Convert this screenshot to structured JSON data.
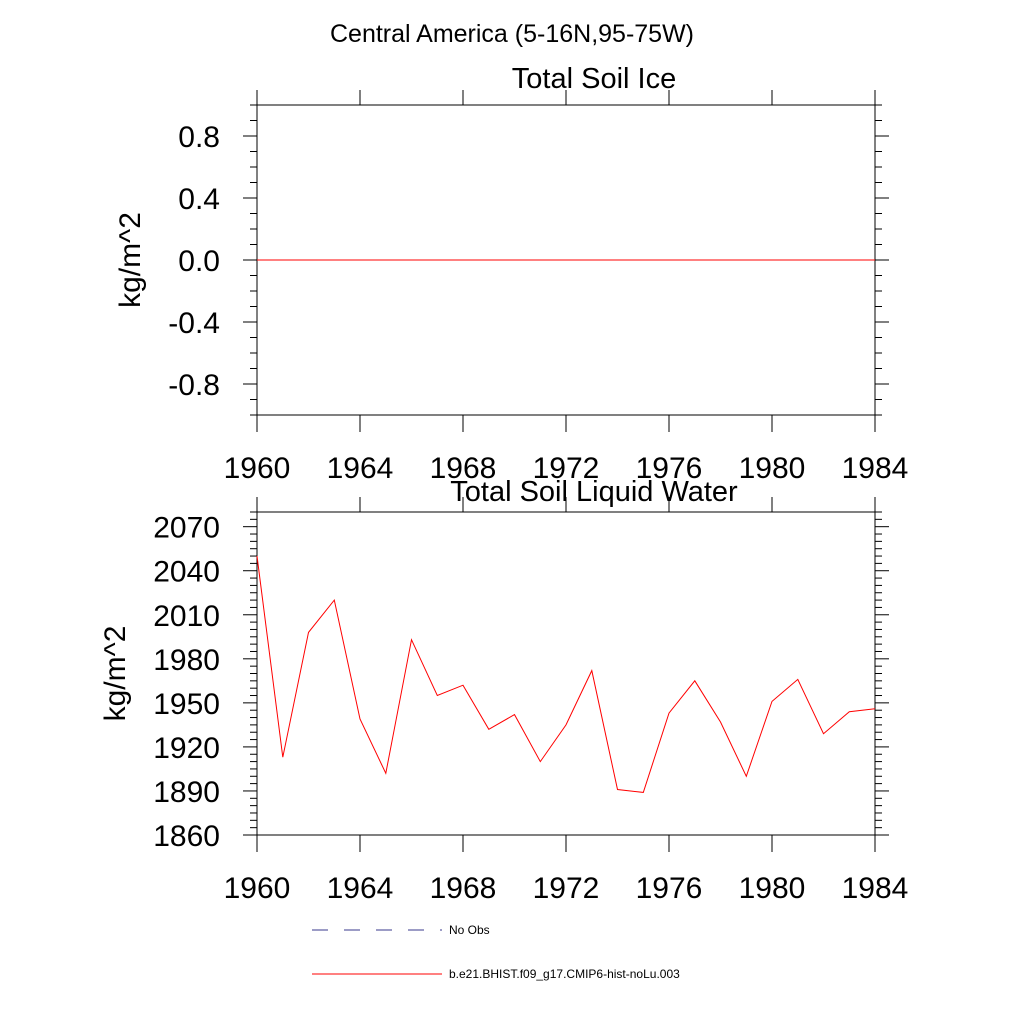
{
  "figure": {
    "title": "Central America (5-16N,95-75W)"
  },
  "chart_data": [
    {
      "type": "line",
      "title": "Total Soil Ice",
      "ylabel": "kg/m^2",
      "xlabel": "",
      "xlim": [
        1960,
        1984
      ],
      "ylim": [
        -1.0,
        1.0
      ],
      "x_ticks": [
        1960,
        1964,
        1968,
        1972,
        1976,
        1980,
        1984
      ],
      "x_tick_labels": [
        "1960",
        "1964",
        "1968",
        "1972",
        "1976",
        "1980",
        "1984"
      ],
      "y_ticks": [
        0.8,
        0.4,
        0.0,
        -0.4,
        -0.8
      ],
      "y_tick_labels": [
        "0.8",
        "0.4",
        "0.0",
        "-0.4",
        "-0.8"
      ],
      "grid": false,
      "series": [
        {
          "name": "b.e21.BHIST.f09_g17.CMIP6-hist-noLu.003",
          "color": "#ff0000",
          "x": [
            1960,
            1961,
            1962,
            1963,
            1964,
            1965,
            1966,
            1967,
            1968,
            1969,
            1970,
            1971,
            1972,
            1973,
            1974,
            1975,
            1976,
            1977,
            1978,
            1979,
            1980,
            1981,
            1982,
            1983,
            1984
          ],
          "values": [
            0,
            0,
            0,
            0,
            0,
            0,
            0,
            0,
            0,
            0,
            0,
            0,
            0,
            0,
            0,
            0,
            0,
            0,
            0,
            0,
            0,
            0,
            0,
            0,
            0
          ]
        }
      ]
    },
    {
      "type": "line",
      "title": "Total Soil Liquid Water",
      "ylabel": "kg/m^2",
      "xlabel": "",
      "xlim": [
        1960,
        1984
      ],
      "ylim": [
        1860,
        2080
      ],
      "x_ticks": [
        1960,
        1964,
        1968,
        1972,
        1976,
        1980,
        1984
      ],
      "x_tick_labels": [
        "1960",
        "1964",
        "1968",
        "1972",
        "1976",
        "1980",
        "1984"
      ],
      "y_ticks": [
        2070,
        2040,
        2010,
        1980,
        1950,
        1920,
        1890,
        1860
      ],
      "y_tick_labels": [
        "2070",
        "2040",
        "2010",
        "1980",
        "1950",
        "1920",
        "1890",
        "1860"
      ],
      "grid": false,
      "series": [
        {
          "name": "b.e21.BHIST.f09_g17.CMIP6-hist-noLu.003",
          "color": "#ff0000",
          "x": [
            1960,
            1961,
            1962,
            1963,
            1964,
            1965,
            1966,
            1967,
            1968,
            1969,
            1970,
            1971,
            1972,
            1973,
            1974,
            1975,
            1976,
            1977,
            1978,
            1979,
            1980,
            1981,
            1982,
            1983,
            1984
          ],
          "values": [
            2050,
            1913,
            1998,
            2020,
            1939,
            1902,
            1993,
            1955,
            1962,
            1932,
            1942,
            1910,
            1935,
            1972,
            1891,
            1889,
            1943,
            1965,
            1937,
            1900,
            1951,
            1966,
            1929,
            1944,
            1946
          ]
        }
      ]
    }
  ],
  "legend": {
    "placement": "bottom",
    "items": [
      {
        "label": "No Obs",
        "color": "#3a3a8c",
        "style": "dashed"
      },
      {
        "label": "b.e21.BHIST.f09_g17.CMIP6-hist-noLu.003",
        "color": "#ff0000",
        "style": "solid"
      }
    ]
  }
}
